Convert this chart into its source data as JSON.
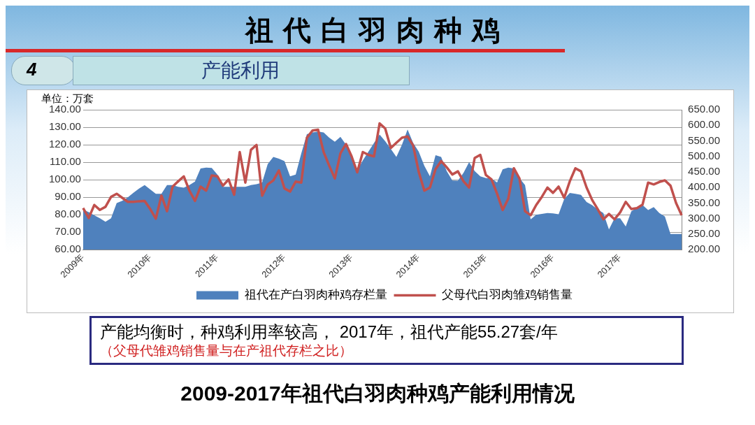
{
  "chart_data": {
    "type": "area",
    "title": "祖代白羽肉种鸡",
    "subtitle": "产能利用",
    "ylabel": "单位：万套",
    "annotations": [
      "4",
      "产能均衡时，种鸡利用率较高， 2017年，祖代产能55.27套/年",
      "（父母代雏鸡销售量与在产祖代存栏之比）",
      "2009-2017年祖代白羽肉种鸡产能利用情况"
    ],
    "categories": [
      "2009年",
      null,
      null,
      null,
      null,
      null,
      null,
      null,
      null,
      null,
      null,
      null,
      "2010年",
      null,
      null,
      null,
      null,
      null,
      null,
      null,
      null,
      null,
      null,
      null,
      "2011年",
      null,
      null,
      null,
      null,
      null,
      null,
      null,
      null,
      null,
      null,
      null,
      "2012年",
      null,
      null,
      null,
      null,
      null,
      null,
      null,
      null,
      null,
      null,
      null,
      "2013年",
      null,
      null,
      null,
      null,
      null,
      null,
      null,
      null,
      null,
      null,
      null,
      "2014年",
      null,
      null,
      null,
      null,
      null,
      null,
      null,
      null,
      null,
      null,
      null,
      "2015年",
      null,
      null,
      null,
      null,
      null,
      null,
      null,
      null,
      null,
      null,
      null,
      "2016年",
      null,
      null,
      null,
      null,
      null,
      null,
      null,
      null,
      null,
      null,
      null,
      "2017年",
      null,
      null,
      null,
      null,
      null,
      null,
      null,
      null,
      null,
      null,
      null
    ],
    "series": [
      {
        "name": "祖代在产白羽肉种鸡存栏量",
        "type": "area",
        "color": "#4f81bd",
        "values": [
          83,
          81.5,
          79.7,
          78,
          76,
          78,
          86.7,
          88,
          90,
          92.6,
          95,
          97,
          94.5,
          92,
          92,
          97,
          97,
          96,
          95.5,
          97,
          99,
          106.5,
          107,
          106.8,
          103,
          96,
          96,
          96,
          96,
          96,
          97,
          97.5,
          98.4,
          109,
          113,
          112,
          110.6,
          102,
          103,
          115,
          126,
          127,
          127.5,
          127,
          124,
          121.7,
          124.5,
          120,
          112,
          105.4,
          111,
          116,
          121,
          125.8,
          122,
          117.6,
          113,
          120,
          128.7,
          121,
          116,
          108,
          102,
          114,
          113,
          105,
          99.6,
          99.5,
          104,
          110,
          105,
          102,
          101,
          100.7,
          98.5,
          106,
          107,
          106.5,
          101,
          97,
          77.4,
          80,
          80.5,
          81,
          80.8,
          80.3,
          89,
          92.5,
          92,
          91.4,
          87.3,
          85.5,
          83,
          81,
          71.6,
          78,
          78,
          73.3,
          82,
          84,
          85.6,
          82.7,
          84.4,
          81,
          79,
          69,
          69,
          69
        ]
      },
      {
        "name": "父母代白羽肉雏鸡销售量",
        "type": "line",
        "axis": "y2",
        "color": "#c0504d",
        "values": [
          334,
          302,
          344,
          328,
          338,
          370,
          380,
          367,
          354,
          354,
          356,
          357,
          331,
          300,
          374,
          324,
          403,
          420,
          436,
          390,
          357,
          403,
          390,
          439,
          436,
          406,
          426,
          377,
          514,
          416,
          521,
          537,
          374,
          410,
          423,
          455,
          397,
          387,
          419,
          416,
          560,
          583,
          586,
          514,
          470,
          429,
          510,
          540,
          500,
          449,
          514,
          505,
          500,
          606,
          590,
          527,
          544,
          560,
          564,
          535,
          450,
          390,
          400,
          459,
          485,
          465,
          442,
          452,
          420,
          400,
          495,
          505,
          440,
          426,
          380,
          328,
          364,
          462,
          429,
          324,
          311,
          344,
          370,
          400,
          383,
          403,
          367,
          420,
          462,
          452,
          400,
          360,
          330,
          298,
          315,
          298,
          320,
          354,
          331,
          334,
          345,
          416,
          410,
          418,
          423,
          406,
          350,
          311
        ]
      }
    ],
    "ylim": [
      60,
      140
    ],
    "yticks": [
      {
        "value": 60,
        "label": "60.00"
      },
      {
        "value": 70,
        "label": "70.00"
      },
      {
        "value": 80,
        "label": "80.00"
      },
      {
        "value": 90,
        "label": "90.00"
      },
      {
        "value": 100,
        "label": "100.00"
      },
      {
        "value": 110,
        "label": "110.00"
      },
      {
        "value": 120,
        "label": "120.00"
      },
      {
        "value": 130,
        "label": "130.00"
      },
      {
        "value": 140,
        "label": "140.00"
      }
    ],
    "y2lim": [
      200,
      650
    ],
    "y2ticks": [
      {
        "value": 200,
        "label": "200.00"
      },
      {
        "value": 250,
        "label": "250.00"
      },
      {
        "value": 300,
        "label": "300.00"
      },
      {
        "value": 350,
        "label": "350.00"
      },
      {
        "value": 400,
        "label": "400.00"
      },
      {
        "value": 450,
        "label": "450.00"
      },
      {
        "value": 500,
        "label": "500.00"
      },
      {
        "value": 550,
        "label": "550.00"
      },
      {
        "value": 600,
        "label": "600.00"
      },
      {
        "value": 650,
        "label": "650.00"
      }
    ],
    "grid": "y",
    "legend": "bottom",
    "marker": "none"
  }
}
